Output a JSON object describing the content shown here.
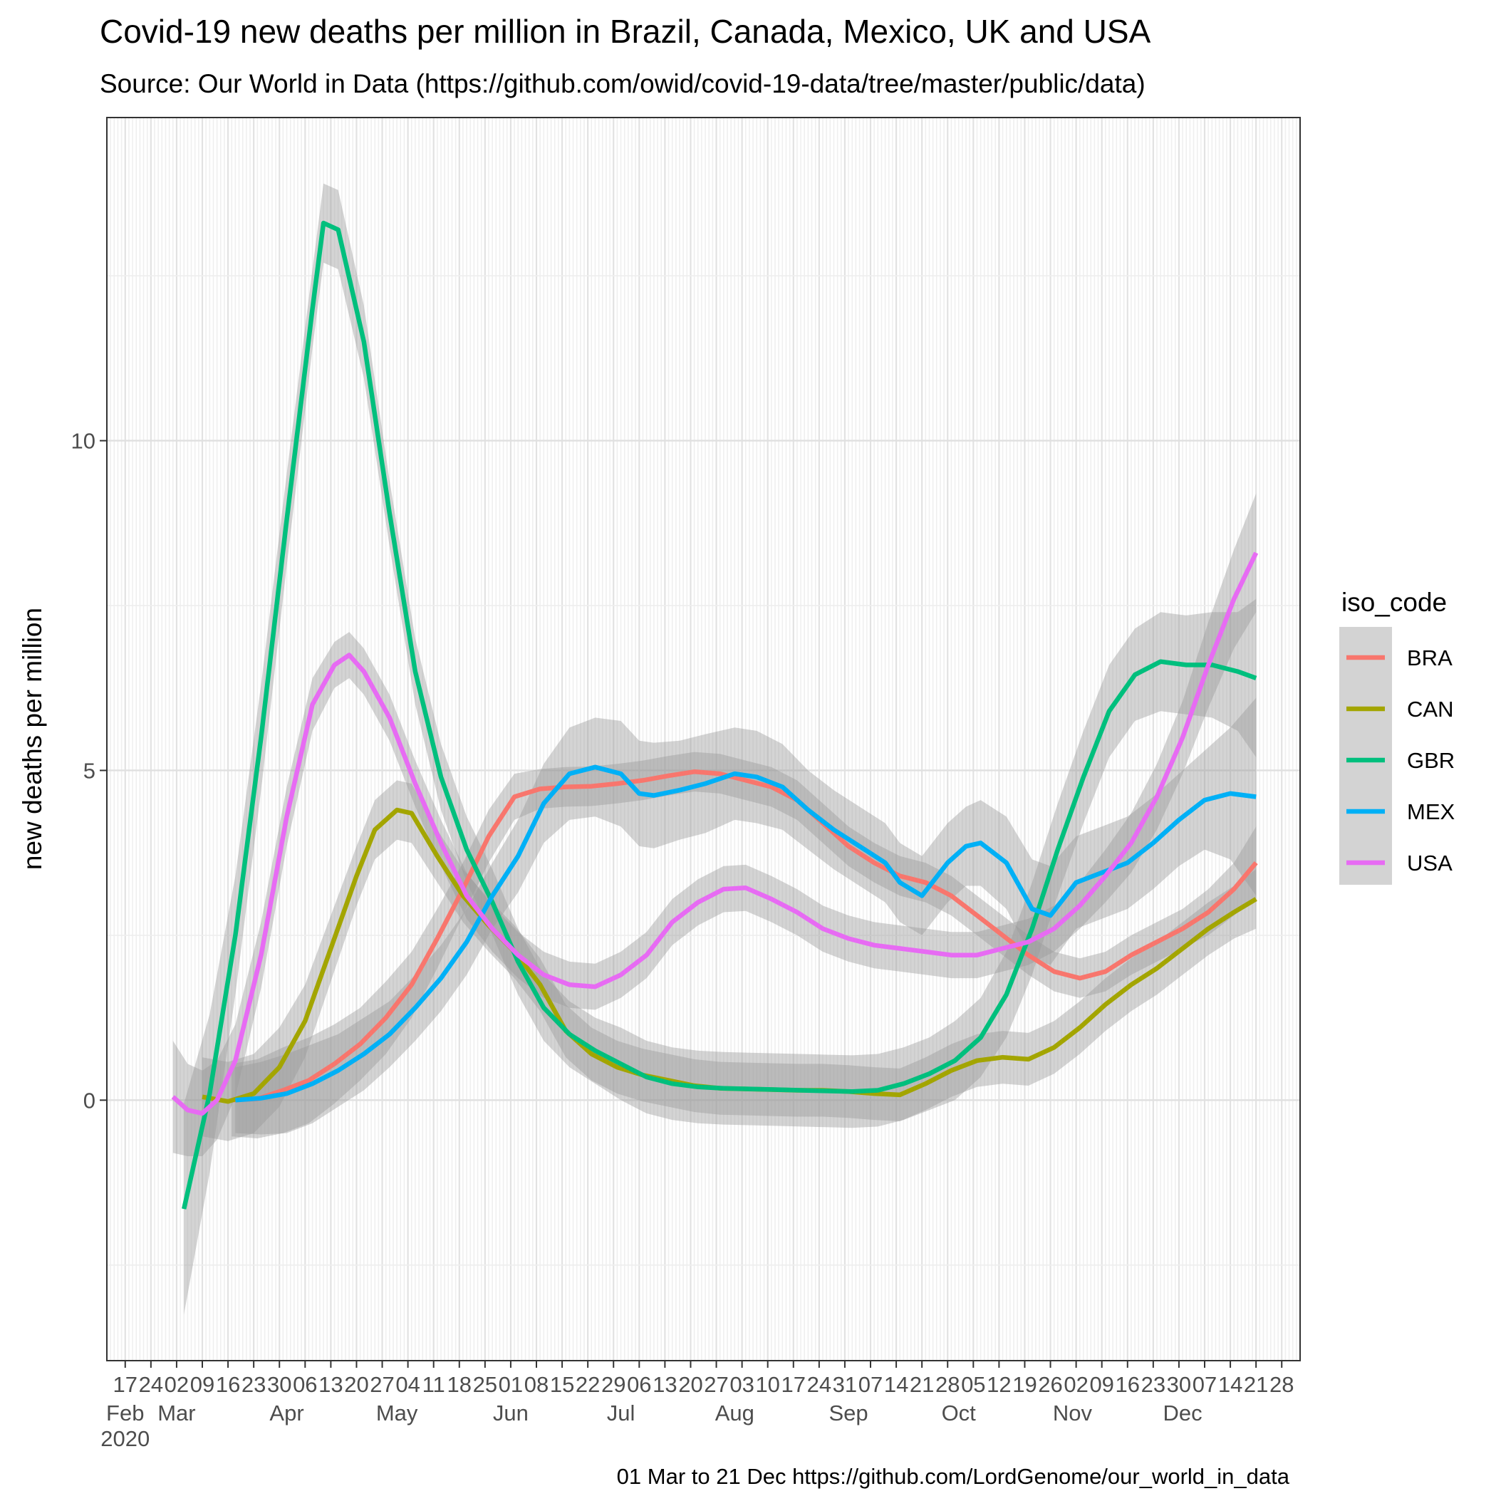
{
  "chart_data": {
    "type": "line",
    "title": "Covid-19 new deaths per million in Brazil, Canada, Mexico, UK and USA",
    "subtitle": "Source: Our World in Data  (https://github.com/owid/covid-19-data/tree/master/public/data)",
    "caption": "01 Mar to 21 Dec https://github.com/LordGenome/our_world_in_data",
    "xlabel": "",
    "ylabel": "new deaths per million",
    "xlim": [
      "2020-02-12",
      "2021-01-02"
    ],
    "ylim": [
      -3.95,
      14.9
    ],
    "grid": true,
    "y_ticks": [
      {
        "value": 0,
        "label": "0"
      },
      {
        "value": 5,
        "label": "5"
      },
      {
        "value": 10,
        "label": "10"
      }
    ],
    "x_day_ticks": [
      {
        "date": "2020-02-17",
        "label": "17"
      },
      {
        "date": "2020-02-24",
        "label": "24"
      },
      {
        "date": "2020-03-02",
        "label": "02"
      },
      {
        "date": "2020-03-09",
        "label": "09"
      },
      {
        "date": "2020-03-16",
        "label": "16"
      },
      {
        "date": "2020-03-23",
        "label": "23"
      },
      {
        "date": "2020-03-30",
        "label": "30"
      },
      {
        "date": "2020-04-06",
        "label": "06"
      },
      {
        "date": "2020-04-13",
        "label": "13"
      },
      {
        "date": "2020-04-20",
        "label": "20"
      },
      {
        "date": "2020-04-27",
        "label": "27"
      },
      {
        "date": "2020-05-04",
        "label": "04"
      },
      {
        "date": "2020-05-11",
        "label": "11"
      },
      {
        "date": "2020-05-18",
        "label": "18"
      },
      {
        "date": "2020-05-25",
        "label": "25"
      },
      {
        "date": "2020-06-01",
        "label": "01"
      },
      {
        "date": "2020-06-08",
        "label": "08"
      },
      {
        "date": "2020-06-15",
        "label": "15"
      },
      {
        "date": "2020-06-22",
        "label": "22"
      },
      {
        "date": "2020-06-29",
        "label": "29"
      },
      {
        "date": "2020-07-06",
        "label": "06"
      },
      {
        "date": "2020-07-13",
        "label": "13"
      },
      {
        "date": "2020-07-20",
        "label": "20"
      },
      {
        "date": "2020-07-27",
        "label": "27"
      },
      {
        "date": "2020-08-03",
        "label": "03"
      },
      {
        "date": "2020-08-10",
        "label": "10"
      },
      {
        "date": "2020-08-17",
        "label": "17"
      },
      {
        "date": "2020-08-24",
        "label": "24"
      },
      {
        "date": "2020-08-31",
        "label": "31"
      },
      {
        "date": "2020-09-07",
        "label": "07"
      },
      {
        "date": "2020-09-14",
        "label": "14"
      },
      {
        "date": "2020-09-21",
        "label": "21"
      },
      {
        "date": "2020-09-28",
        "label": "28"
      },
      {
        "date": "2020-10-05",
        "label": "05"
      },
      {
        "date": "2020-10-12",
        "label": "12"
      },
      {
        "date": "2020-10-19",
        "label": "19"
      },
      {
        "date": "2020-10-26",
        "label": "26"
      },
      {
        "date": "2020-11-02",
        "label": "02"
      },
      {
        "date": "2020-11-09",
        "label": "09"
      },
      {
        "date": "2020-11-16",
        "label": "16"
      },
      {
        "date": "2020-11-23",
        "label": "23"
      },
      {
        "date": "2020-11-30",
        "label": "30"
      },
      {
        "date": "2020-12-07",
        "label": "07"
      },
      {
        "date": "2020-12-14",
        "label": "14"
      },
      {
        "date": "2020-12-21",
        "label": "21"
      },
      {
        "date": "2020-12-28",
        "label": "28"
      }
    ],
    "x_month_ticks": [
      {
        "date": "2020-02-17",
        "label": "Feb"
      },
      {
        "date": "2020-03-02",
        "label": "Mar"
      },
      {
        "date": "2020-04-01",
        "label": "Apr"
      },
      {
        "date": "2020-05-01",
        "label": "May"
      },
      {
        "date": "2020-06-01",
        "label": "Jun"
      },
      {
        "date": "2020-07-01",
        "label": "Jul"
      },
      {
        "date": "2020-08-01",
        "label": "Aug"
      },
      {
        "date": "2020-09-01",
        "label": "Sep"
      },
      {
        "date": "2020-10-01",
        "label": "Oct"
      },
      {
        "date": "2020-11-01",
        "label": "Nov"
      },
      {
        "date": "2020-12-01",
        "label": "Dec"
      }
    ],
    "x_year_label": {
      "date": "2020-02-17",
      "label": "2020"
    },
    "legend": {
      "title": "iso_code",
      "position": "right"
    },
    "band_color": "#999999",
    "series": [
      {
        "name": "BRA",
        "color": "#F8766D",
        "x": [
          "2020-03-17",
          "2020-03-24",
          "2020-03-31",
          "2020-04-07",
          "2020-04-14",
          "2020-04-21",
          "2020-04-28",
          "2020-05-05",
          "2020-05-12",
          "2020-05-19",
          "2020-05-26",
          "2020-06-02",
          "2020-06-09",
          "2020-06-16",
          "2020-06-23",
          "2020-06-30",
          "2020-07-07",
          "2020-07-14",
          "2020-07-21",
          "2020-07-28",
          "2020-08-04",
          "2020-08-11",
          "2020-08-18",
          "2020-08-25",
          "2020-09-01",
          "2020-09-08",
          "2020-09-15",
          "2020-09-22",
          "2020-09-29",
          "2020-10-06",
          "2020-10-13",
          "2020-10-20",
          "2020-10-27",
          "2020-11-03",
          "2020-11-10",
          "2020-11-17",
          "2020-11-24",
          "2020-12-01",
          "2020-12-08",
          "2020-12-15",
          "2020-12-21"
        ],
        "y": [
          0.0,
          0.02,
          0.15,
          0.3,
          0.55,
          0.85,
          1.25,
          1.75,
          2.45,
          3.2,
          4.0,
          4.6,
          4.72,
          4.75,
          4.76,
          4.8,
          4.85,
          4.92,
          4.98,
          4.95,
          4.85,
          4.75,
          4.55,
          4.2,
          3.85,
          3.6,
          3.4,
          3.3,
          3.1,
          2.8,
          2.5,
          2.2,
          1.95,
          1.85,
          1.95,
          2.2,
          2.4,
          2.6,
          2.85,
          3.2,
          3.6
        ],
        "ci": [
          0.55,
          0.6,
          0.65,
          0.65,
          0.6,
          0.55,
          0.55,
          0.5,
          0.45,
          0.4,
          0.4,
          0.35,
          0.3,
          0.3,
          0.3,
          0.3,
          0.3,
          0.3,
          0.3,
          0.3,
          0.3,
          0.3,
          0.3,
          0.3,
          0.3,
          0.3,
          0.3,
          0.3,
          0.3,
          0.3,
          0.3,
          0.3,
          0.3,
          0.3,
          0.3,
          0.3,
          0.3,
          0.3,
          0.35,
          0.4,
          0.55
        ]
      },
      {
        "name": "CAN",
        "color": "#A3A500",
        "x": [
          "2020-03-09",
          "2020-03-16",
          "2020-03-23",
          "2020-03-30",
          "2020-04-06",
          "2020-04-13",
          "2020-04-20",
          "2020-04-25",
          "2020-05-01",
          "2020-05-05",
          "2020-05-12",
          "2020-05-19",
          "2020-05-26",
          "2020-06-02",
          "2020-06-09",
          "2020-06-16",
          "2020-06-23",
          "2020-06-30",
          "2020-07-07",
          "2020-07-14",
          "2020-07-21",
          "2020-07-28",
          "2020-08-04",
          "2020-08-11",
          "2020-08-18",
          "2020-08-25",
          "2020-09-01",
          "2020-09-08",
          "2020-09-15",
          "2020-09-22",
          "2020-09-29",
          "2020-10-06",
          "2020-10-13",
          "2020-10-20",
          "2020-10-27",
          "2020-11-03",
          "2020-11-10",
          "2020-11-17",
          "2020-11-24",
          "2020-12-01",
          "2020-12-08",
          "2020-12-15",
          "2020-12-21"
        ],
        "y": [
          0.05,
          -0.02,
          0.1,
          0.5,
          1.2,
          2.3,
          3.4,
          4.1,
          4.4,
          4.35,
          3.7,
          3.1,
          2.65,
          2.25,
          1.75,
          1.05,
          0.7,
          0.5,
          0.38,
          0.3,
          0.22,
          0.18,
          0.17,
          0.16,
          0.15,
          0.15,
          0.13,
          0.1,
          0.08,
          0.25,
          0.45,
          0.6,
          0.65,
          0.62,
          0.8,
          1.1,
          1.45,
          1.75,
          2.0,
          2.3,
          2.6,
          2.85,
          3.05
        ],
        "ci": [
          0.6,
          0.6,
          0.6,
          0.6,
          0.55,
          0.5,
          0.45,
          0.45,
          0.45,
          0.45,
          0.4,
          0.4,
          0.4,
          0.4,
          0.4,
          0.4,
          0.4,
          0.4,
          0.4,
          0.4,
          0.4,
          0.4,
          0.4,
          0.4,
          0.4,
          0.4,
          0.4,
          0.4,
          0.4,
          0.4,
          0.4,
          0.4,
          0.4,
          0.4,
          0.4,
          0.4,
          0.4,
          0.4,
          0.4,
          0.4,
          0.4,
          0.4,
          0.45
        ]
      },
      {
        "name": "GBR",
        "color": "#00BF7D",
        "x": [
          "2020-03-04",
          "2020-03-11",
          "2020-03-18",
          "2020-03-25",
          "2020-04-01",
          "2020-04-08",
          "2020-04-11",
          "2020-04-15",
          "2020-04-22",
          "2020-04-29",
          "2020-05-06",
          "2020-05-13",
          "2020-05-20",
          "2020-05-27",
          "2020-06-03",
          "2020-06-10",
          "2020-06-17",
          "2020-06-24",
          "2020-07-01",
          "2020-07-08",
          "2020-07-15",
          "2020-07-22",
          "2020-07-29",
          "2020-08-05",
          "2020-08-12",
          "2020-08-19",
          "2020-08-26",
          "2020-09-02",
          "2020-09-09",
          "2020-09-16",
          "2020-09-23",
          "2020-09-30",
          "2020-10-07",
          "2020-10-14",
          "2020-10-21",
          "2020-10-28",
          "2020-11-04",
          "2020-11-11",
          "2020-11-18",
          "2020-11-25",
          "2020-12-02",
          "2020-12-09",
          "2020-12-16",
          "2020-12-21"
        ],
        "y": [
          -1.65,
          0.1,
          2.5,
          5.5,
          8.8,
          12.0,
          13.3,
          13.2,
          11.5,
          8.9,
          6.5,
          4.9,
          3.8,
          3.0,
          2.1,
          1.4,
          1.0,
          0.75,
          0.55,
          0.35,
          0.25,
          0.2,
          0.18,
          0.17,
          0.16,
          0.15,
          0.14,
          0.13,
          0.15,
          0.25,
          0.4,
          0.6,
          0.95,
          1.6,
          2.6,
          3.8,
          4.9,
          5.9,
          6.45,
          6.65,
          6.6,
          6.6,
          6.5,
          6.4
        ],
        "ci": [
          1.6,
          1.2,
          0.9,
          0.8,
          0.7,
          0.6,
          0.6,
          0.6,
          0.55,
          0.5,
          0.5,
          0.5,
          0.5,
          0.5,
          0.5,
          0.5,
          0.5,
          0.5,
          0.55,
          0.55,
          0.55,
          0.55,
          0.55,
          0.55,
          0.55,
          0.55,
          0.55,
          0.55,
          0.55,
          0.55,
          0.55,
          0.6,
          0.6,
          0.65,
          0.7,
          0.7,
          0.7,
          0.7,
          0.7,
          0.75,
          0.75,
          0.8,
          0.9,
          1.2
        ]
      },
      {
        "name": "MEX",
        "color": "#00B0F6",
        "x": [
          "2020-03-18",
          "2020-03-25",
          "2020-04-01",
          "2020-04-08",
          "2020-04-15",
          "2020-04-22",
          "2020-04-29",
          "2020-05-06",
          "2020-05-13",
          "2020-05-20",
          "2020-05-27",
          "2020-06-03",
          "2020-06-10",
          "2020-06-17",
          "2020-06-24",
          "2020-07-01",
          "2020-07-06",
          "2020-07-10",
          "2020-07-17",
          "2020-07-24",
          "2020-08-01",
          "2020-08-07",
          "2020-08-14",
          "2020-08-21",
          "2020-08-28",
          "2020-09-04",
          "2020-09-11",
          "2020-09-15",
          "2020-09-21",
          "2020-09-28",
          "2020-10-03",
          "2020-10-07",
          "2020-10-14",
          "2020-10-21",
          "2020-10-26",
          "2020-11-02",
          "2020-11-09",
          "2020-11-16",
          "2020-11-23",
          "2020-11-30",
          "2020-12-07",
          "2020-12-14",
          "2020-12-21"
        ],
        "y": [
          0.0,
          0.03,
          0.1,
          0.25,
          0.45,
          0.7,
          1.0,
          1.4,
          1.85,
          2.4,
          3.1,
          3.7,
          4.5,
          4.95,
          5.05,
          4.95,
          4.65,
          4.62,
          4.7,
          4.8,
          4.95,
          4.9,
          4.75,
          4.4,
          4.1,
          3.85,
          3.6,
          3.3,
          3.1,
          3.6,
          3.85,
          3.9,
          3.6,
          2.9,
          2.8,
          3.3,
          3.45,
          3.6,
          3.9,
          4.25,
          4.55,
          4.65,
          4.6
        ],
        "ci": [
          0.5,
          0.55,
          0.6,
          0.6,
          0.55,
          0.55,
          0.5,
          0.5,
          0.5,
          0.5,
          0.5,
          0.55,
          0.6,
          0.7,
          0.75,
          0.8,
          0.8,
          0.8,
          0.75,
          0.75,
          0.7,
          0.7,
          0.65,
          0.6,
          0.6,
          0.6,
          0.6,
          0.6,
          0.6,
          0.6,
          0.6,
          0.65,
          0.7,
          0.75,
          0.75,
          0.7,
          0.7,
          0.7,
          0.7,
          0.7,
          0.75,
          1.0,
          1.5
        ]
      },
      {
        "name": "USA",
        "color": "#E76BF3",
        "x": [
          "2020-03-01",
          "2020-03-05",
          "2020-03-09",
          "2020-03-13",
          "2020-03-18",
          "2020-03-25",
          "2020-04-01",
          "2020-04-08",
          "2020-04-14",
          "2020-04-18",
          "2020-04-22",
          "2020-04-29",
          "2020-05-06",
          "2020-05-13",
          "2020-05-20",
          "2020-05-27",
          "2020-06-03",
          "2020-06-10",
          "2020-06-17",
          "2020-06-24",
          "2020-07-01",
          "2020-07-08",
          "2020-07-15",
          "2020-07-22",
          "2020-07-29",
          "2020-08-04",
          "2020-08-11",
          "2020-08-18",
          "2020-08-25",
          "2020-09-01",
          "2020-09-08",
          "2020-09-15",
          "2020-09-22",
          "2020-09-29",
          "2020-10-06",
          "2020-10-13",
          "2020-10-20",
          "2020-10-27",
          "2020-11-03",
          "2020-11-10",
          "2020-11-17",
          "2020-11-24",
          "2020-12-01",
          "2020-12-08",
          "2020-12-15",
          "2020-12-21"
        ],
        "y": [
          0.05,
          -0.15,
          -0.2,
          0.0,
          0.6,
          2.2,
          4.3,
          6.0,
          6.6,
          6.75,
          6.5,
          5.8,
          4.8,
          3.9,
          3.1,
          2.6,
          2.2,
          1.9,
          1.75,
          1.72,
          1.9,
          2.2,
          2.7,
          3.0,
          3.2,
          3.22,
          3.05,
          2.85,
          2.6,
          2.45,
          2.35,
          2.3,
          2.25,
          2.2,
          2.2,
          2.3,
          2.4,
          2.6,
          2.95,
          3.4,
          3.9,
          4.6,
          5.5,
          6.6,
          7.6,
          8.3
        ],
        "ci": [
          0.85,
          0.7,
          0.65,
          0.6,
          0.55,
          0.5,
          0.45,
          0.4,
          0.35,
          0.35,
          0.35,
          0.35,
          0.35,
          0.35,
          0.35,
          0.35,
          0.35,
          0.35,
          0.35,
          0.35,
          0.35,
          0.35,
          0.35,
          0.35,
          0.35,
          0.35,
          0.35,
          0.35,
          0.35,
          0.35,
          0.35,
          0.35,
          0.35,
          0.35,
          0.35,
          0.35,
          0.35,
          0.35,
          0.35,
          0.4,
          0.45,
          0.5,
          0.55,
          0.65,
          0.75,
          0.9
        ]
      }
    ]
  }
}
